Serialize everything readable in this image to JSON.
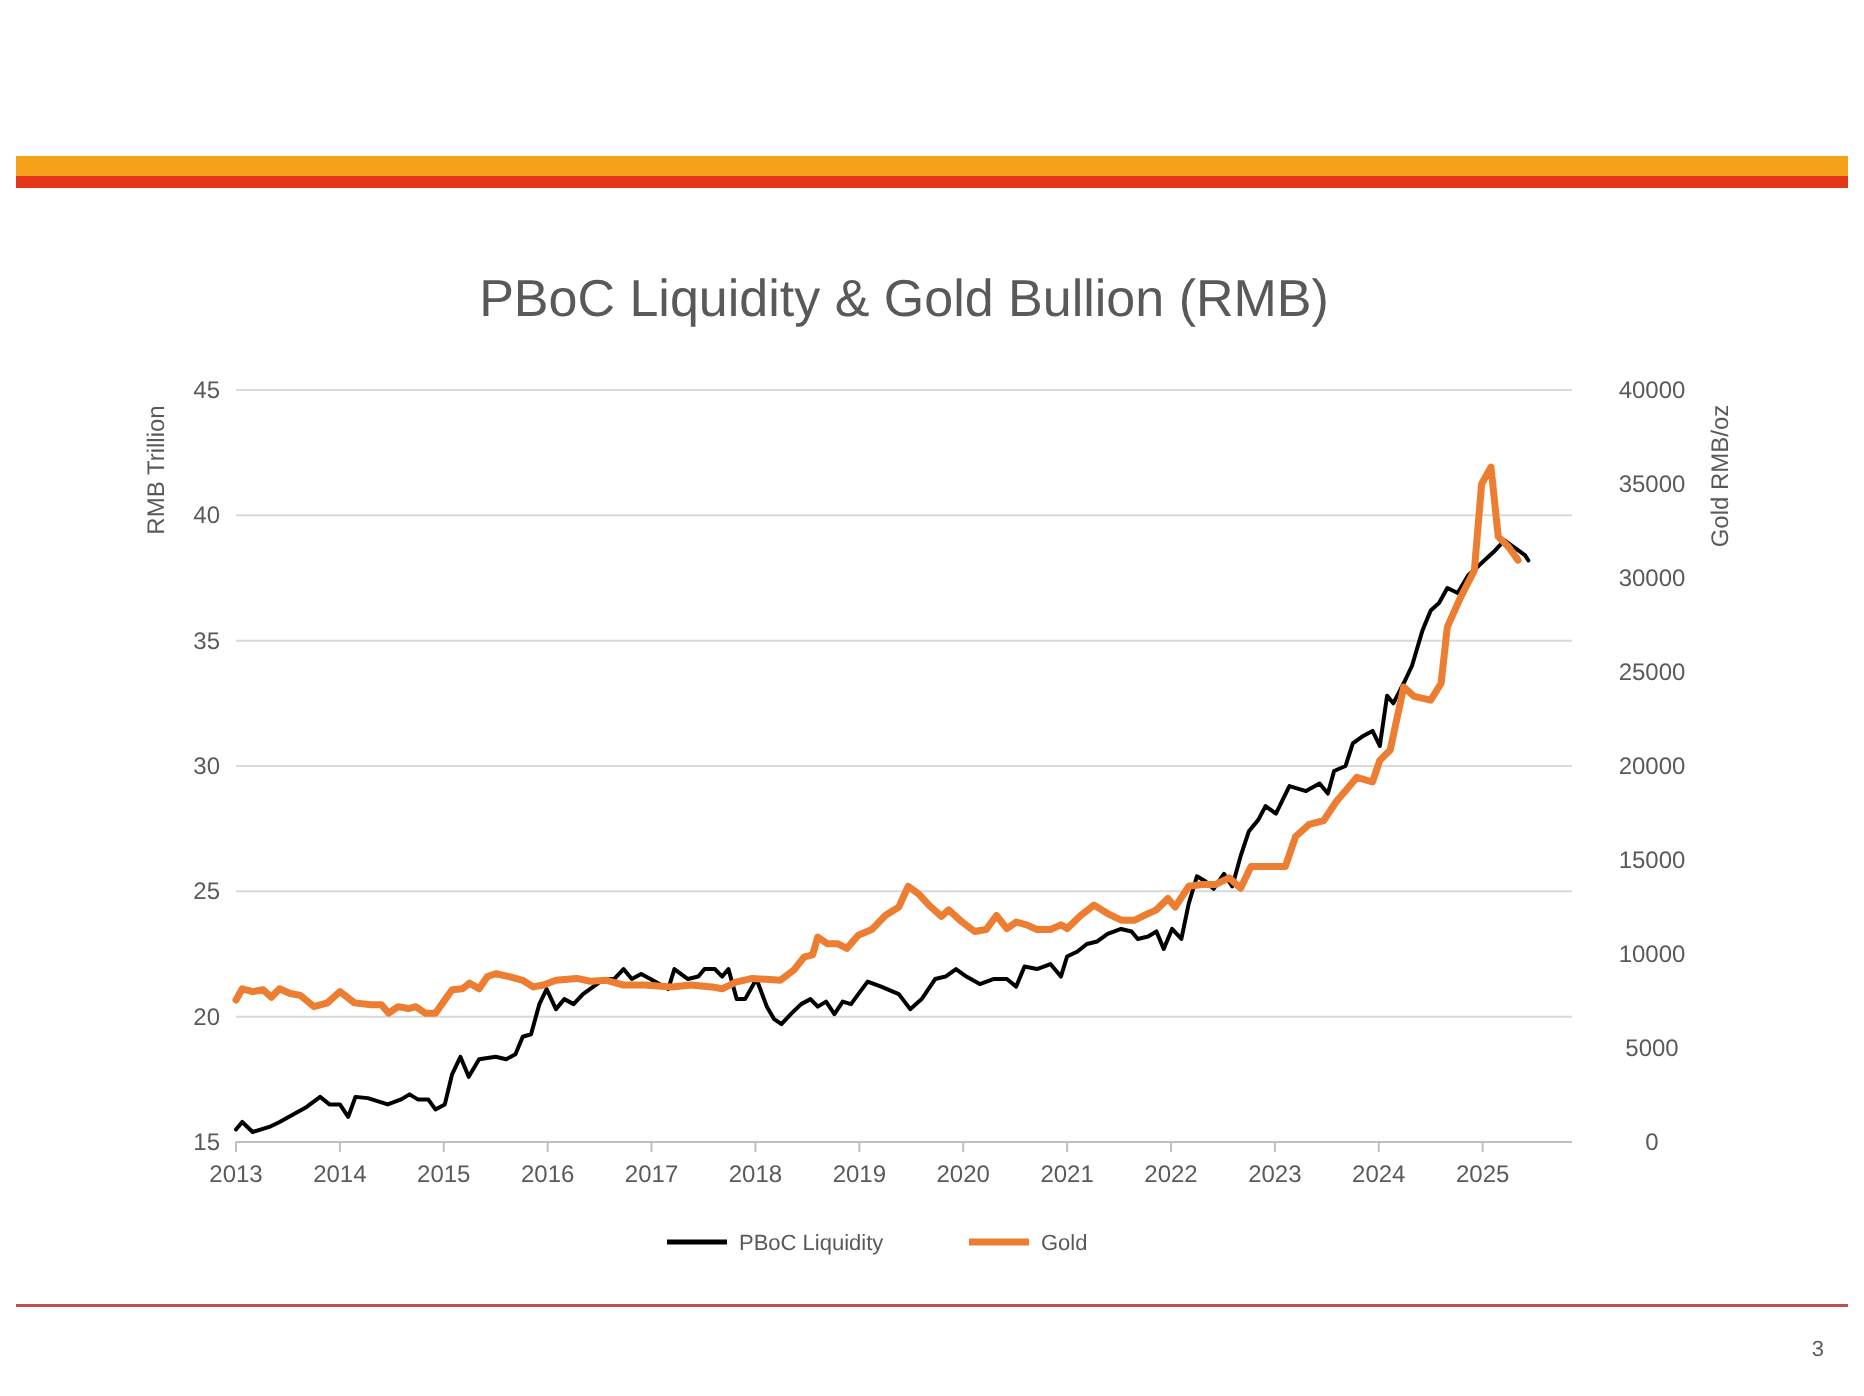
{
  "chart_data": {
    "type": "line",
    "title": "PBoC Liquidity & Gold Bullion (RMB)",
    "ylabel": "RMB Trillion",
    "y2label": "Gold RMB/oz",
    "xlim": [
      2013,
      2025.86
    ],
    "xticks": [
      2013,
      2014,
      2015,
      2016,
      2017,
      2018,
      2019,
      2020,
      2021,
      2022,
      2023,
      2024,
      2025
    ],
    "ylim": [
      15,
      45
    ],
    "yticks": [
      15,
      20,
      25,
      30,
      35,
      40,
      45
    ],
    "y2lim": [
      0,
      40000
    ],
    "y2ticks": [
      0,
      5000,
      10000,
      15000,
      20000,
      25000,
      30000,
      35000,
      40000
    ],
    "grid": "y",
    "legend": "bottom",
    "line_style": "solid",
    "marker": "none",
    "annotations": [
      "3"
    ],
    "series": [
      {
        "name": "PBoC Liquidity",
        "color": "#000000",
        "x": [
          2013.0,
          2013.06,
          2013.16,
          2013.32,
          2013.42,
          2013.55,
          2013.68,
          2013.81,
          2013.9,
          2014.0,
          2014.08,
          2014.15,
          2014.27,
          2014.46,
          2014.59,
          2014.67,
          2014.75,
          2014.85,
          2014.92,
          2015.01,
          2015.08,
          2015.16,
          2015.24,
          2015.34,
          2015.5,
          2015.6,
          2015.69,
          2015.76,
          2015.84,
          2015.92,
          2015.99,
          2016.08,
          2016.16,
          2016.25,
          2016.34,
          2016.44,
          2016.54,
          2016.64,
          2016.73,
          2016.81,
          2016.9,
          2016.99,
          2017.16,
          2017.22,
          2017.35,
          2017.45,
          2017.51,
          2017.61,
          2017.68,
          2017.74,
          2017.82,
          2017.9,
          2018.01,
          2018.11,
          2018.18,
          2018.25,
          2018.34,
          2018.44,
          2018.53,
          2018.6,
          2018.68,
          2018.76,
          2018.84,
          2018.92,
          2018.99,
          2019.08,
          2019.21,
          2019.38,
          2019.49,
          2019.6,
          2019.73,
          2019.83,
          2019.93,
          2020.03,
          2020.16,
          2020.29,
          2020.42,
          2020.51,
          2020.59,
          2020.71,
          2020.84,
          2020.94,
          2021.0,
          2021.1,
          2021.19,
          2021.29,
          2021.39,
          2021.52,
          2021.62,
          2021.68,
          2021.78,
          2021.86,
          2021.93,
          2022.01,
          2022.1,
          2022.17,
          2022.25,
          2022.33,
          2022.41,
          2022.51,
          2022.59,
          2022.67,
          2022.75,
          2022.84,
          2022.91,
          2023.01,
          2023.14,
          2023.3,
          2023.43,
          2023.51,
          2023.57,
          2023.68,
          2023.75,
          2023.85,
          2023.94,
          2024.01,
          2024.08,
          2024.14,
          2024.24,
          2024.32,
          2024.42,
          2024.5,
          2024.58,
          2024.66,
          2024.76,
          2024.86,
          2024.99,
          2025.12,
          2025.21,
          2025.31,
          2025.41,
          2025.44
        ],
        "values": [
          15.5,
          15.8,
          15.4,
          15.6,
          15.8,
          16.1,
          16.4,
          16.8,
          16.5,
          16.5,
          16.0,
          16.8,
          16.75,
          16.5,
          16.7,
          16.9,
          16.7,
          16.7,
          16.3,
          16.5,
          17.7,
          18.4,
          17.6,
          18.3,
          18.4,
          18.3,
          18.5,
          19.2,
          19.3,
          20.5,
          21.1,
          20.3,
          20.7,
          20.5,
          20.9,
          21.2,
          21.5,
          21.5,
          21.9,
          21.5,
          21.7,
          21.5,
          21.1,
          21.9,
          21.5,
          21.6,
          21.9,
          21.9,
          21.6,
          21.9,
          20.7,
          20.7,
          21.5,
          20.4,
          19.9,
          19.7,
          20.1,
          20.5,
          20.7,
          20.4,
          20.6,
          20.1,
          20.6,
          20.5,
          20.9,
          21.4,
          21.2,
          20.9,
          20.3,
          20.7,
          21.5,
          21.6,
          21.9,
          21.6,
          21.3,
          21.5,
          21.5,
          21.2,
          22.0,
          21.9,
          22.1,
          21.6,
          22.4,
          22.6,
          22.9,
          23.0,
          23.3,
          23.5,
          23.4,
          23.1,
          23.2,
          23.4,
          22.7,
          23.5,
          23.1,
          24.5,
          25.6,
          25.4,
          25.1,
          25.7,
          25.2,
          26.4,
          27.4,
          27.85,
          28.4,
          28.1,
          29.2,
          29.0,
          29.3,
          28.9,
          29.8,
          30.0,
          30.9,
          31.2,
          31.4,
          30.8,
          32.8,
          32.5,
          33.3,
          34.0,
          35.4,
          36.2,
          36.5,
          37.1,
          36.9,
          37.6,
          38.1,
          38.6,
          39.0,
          38.7,
          38.4,
          38.2
        ]
      },
      {
        "name": "Gold",
        "color": "#ed7d31",
        "axis": "y2",
        "x": [
          2013.0,
          2013.06,
          2013.16,
          2013.26,
          2013.34,
          2013.42,
          2013.52,
          2013.62,
          2013.75,
          2013.88,
          2014.0,
          2014.14,
          2014.3,
          2014.4,
          2014.47,
          2014.56,
          2014.66,
          2014.73,
          2014.82,
          2014.92,
          2014.99,
          2015.08,
          2015.18,
          2015.25,
          2015.34,
          2015.42,
          2015.5,
          2015.63,
          2015.76,
          2015.86,
          2015.96,
          2016.08,
          2016.28,
          2016.41,
          2016.57,
          2016.73,
          2016.93,
          2017.19,
          2017.38,
          2017.58,
          2017.68,
          2017.81,
          2017.97,
          2018.24,
          2018.37,
          2018.47,
          2018.55,
          2018.6,
          2018.69,
          2018.79,
          2018.88,
          2018.99,
          2019.12,
          2019.25,
          2019.38,
          2019.47,
          2019.57,
          2019.67,
          2019.79,
          2019.86,
          2019.99,
          2020.11,
          2020.22,
          2020.32,
          2020.42,
          2020.51,
          2020.61,
          2020.71,
          2020.84,
          2020.94,
          2021.0,
          2021.13,
          2021.26,
          2021.39,
          2021.52,
          2021.65,
          2021.78,
          2021.86,
          2021.97,
          2022.04,
          2022.17,
          2022.3,
          2022.43,
          2022.56,
          2022.67,
          2022.77,
          2022.88,
          2023.1,
          2023.2,
          2023.33,
          2023.47,
          2023.59,
          2023.79,
          2023.94,
          2024.01,
          2024.11,
          2024.24,
          2024.34,
          2024.5,
          2024.6,
          2024.66,
          2024.79,
          2024.92,
          2024.99,
          2025.08,
          2025.15,
          2025.25,
          2025.34
        ],
        "values": [
          7550,
          8150,
          8000,
          8100,
          7700,
          8150,
          7900,
          7800,
          7200,
          7400,
          8000,
          7400,
          7300,
          7300,
          6850,
          7200,
          7100,
          7200,
          6850,
          6850,
          7400,
          8100,
          8150,
          8450,
          8150,
          8800,
          8950,
          8800,
          8600,
          8250,
          8350,
          8600,
          8700,
          8550,
          8600,
          8350,
          8350,
          8250,
          8350,
          8250,
          8150,
          8500,
          8700,
          8600,
          9150,
          9850,
          9950,
          10900,
          10550,
          10550,
          10300,
          11000,
          11300,
          12050,
          12500,
          13600,
          13200,
          12600,
          12000,
          12350,
          11700,
          11200,
          11300,
          12050,
          11350,
          11700,
          11550,
          11300,
          11300,
          11550,
          11350,
          12050,
          12600,
          12150,
          11800,
          11800,
          12150,
          12350,
          12950,
          12500,
          13600,
          13700,
          13700,
          14050,
          13500,
          14650,
          14650,
          14650,
          16250,
          16900,
          17100,
          18100,
          19400,
          19150,
          20300,
          20850,
          24200,
          23700,
          23500,
          24400,
          27400,
          29000,
          30400,
          35000,
          35900,
          32200,
          31650,
          30950
        ]
      }
    ]
  }
}
